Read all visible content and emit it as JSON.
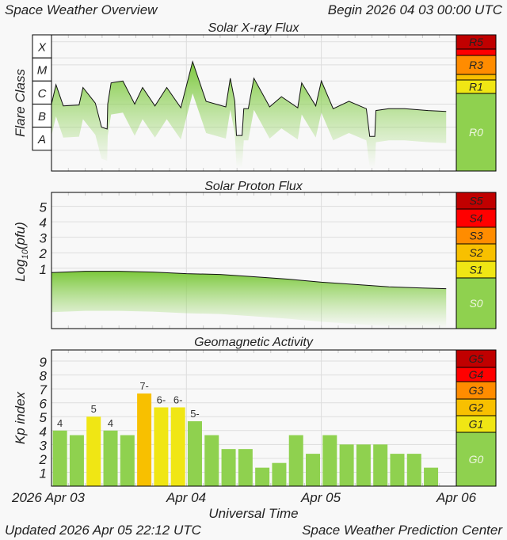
{
  "header": {
    "title": "Space Weather Overview",
    "begin": "Begin 2026 04 03 00:00 UTC"
  },
  "footer": {
    "updated": "Updated 2026 Apr 05 22:12 UTC",
    "source": "Space Weather Prediction Center"
  },
  "x_axis": {
    "label": "Universal Time",
    "ticks": [
      "2026 Apr 03",
      "Apr 04",
      "Apr 05",
      "Apr 06"
    ]
  },
  "chart_data": [
    {
      "type": "area",
      "title": "Solar X-ray Flux",
      "ylabel": "Flare Class",
      "y_categories": [
        "X",
        "M",
        "C",
        "B",
        "A"
      ],
      "y_scale": "log10 W/m2",
      "ylim": [
        -8.9,
        -3.0
      ],
      "scale_bar": [
        {
          "label": "R5",
          "color": "#c00000"
        },
        {
          "label": "",
          "color": "#ff0000"
        },
        {
          "label": "R3",
          "color": "#ff8c00"
        },
        {
          "label": "",
          "color": "#f8c000"
        },
        {
          "label": "R1",
          "color": "#f0e614"
        },
        {
          "label": "R0",
          "color": "#8fd14f"
        }
      ],
      "x": [
        "2026-04-03T00:00",
        "2026-04-03T00:48",
        "2026-04-03T02:06",
        "2026-04-03T04:54",
        "2026-04-03T05:36",
        "2026-04-03T07:48",
        "2026-04-03T08:54",
        "2026-04-03T09:54",
        "2026-04-03T10:00",
        "2026-04-03T10:36",
        "2026-04-03T12:42",
        "2026-04-03T14:48",
        "2026-04-03T16:12",
        "2026-04-03T18:24",
        "2026-04-03T20:30",
        "2026-04-03T23:00",
        "2026-04-04T01:06",
        "2026-04-04T03:30",
        "2026-04-04T07:00",
        "2026-04-04T07:48",
        "2026-04-04T08:36",
        "2026-04-04T08:54",
        "2026-04-04T09:54",
        "2026-04-04T10:12",
        "2026-04-04T11:00",
        "2026-04-04T12:00",
        "2026-04-04T14:48",
        "2026-04-04T16:54",
        "2026-04-04T19:48",
        "2026-04-04T20:30",
        "2026-04-04T23:00",
        "2026-04-05T00:00",
        "2026-04-05T02:06",
        "2026-04-05T04:54",
        "2026-04-05T08:00",
        "2026-04-05T08:36",
        "2026-04-05T09:30",
        "2026-04-05T09:42",
        "2026-04-05T12:00",
        "2026-04-05T14:48",
        "2026-04-05T19:00",
        "2026-04-05T22:12"
      ],
      "y": [
        -6.0,
        -5.16,
        -6.08,
        -6.04,
        -5.28,
        -5.96,
        -7.0,
        -7.08,
        -6.0,
        -5.08,
        -5.0,
        -6.0,
        -5.28,
        -6.08,
        -5.28,
        -6.16,
        -4.16,
        -5.88,
        -6.12,
        -4.88,
        -5.88,
        -7.36,
        -7.36,
        -6.2,
        -6.2,
        -4.88,
        -6.12,
        -5.68,
        -6.16,
        -5.08,
        -6.08,
        -5.0,
        -6.2,
        -5.88,
        -6.2,
        -7.4,
        -7.4,
        -6.28,
        -6.2,
        -6.2,
        -6.28,
        -6.32
      ]
    },
    {
      "type": "area",
      "title": "Solar Proton Flux",
      "ylabel": "Log10(pfu)",
      "yticks": [
        1,
        2,
        3,
        4,
        5
      ],
      "ylim": [
        -2.9,
        5.9
      ],
      "scale_bar": [
        {
          "label": "S5",
          "color": "#c00000"
        },
        {
          "label": "S4",
          "color": "#ff0000"
        },
        {
          "label": "S3",
          "color": "#ff8c00"
        },
        {
          "label": "S2",
          "color": "#f8c000"
        },
        {
          "label": "S1",
          "color": "#f0e614"
        },
        {
          "label": "S0",
          "color": "#8fd14f"
        }
      ],
      "x": [
        "2026-04-03T00:00",
        "2026-04-03T06:00",
        "2026-04-03T12:00",
        "2026-04-03T18:00",
        "2026-04-04T00:00",
        "2026-04-04T06:00",
        "2026-04-04T12:00",
        "2026-04-04T18:00",
        "2026-04-05T00:00",
        "2026-04-05T06:00",
        "2026-04-05T12:00",
        "2026-04-05T18:00",
        "2026-04-05T22:12"
      ],
      "y": [
        0.72,
        0.8,
        0.8,
        0.75,
        0.65,
        0.6,
        0.45,
        0.3,
        0.1,
        -0.05,
        -0.2,
        -0.28,
        -0.32
      ]
    },
    {
      "type": "bar",
      "title": "Geomagnetic Activity",
      "ylabel": "Kp index",
      "yticks": [
        1,
        2,
        3,
        4,
        5,
        6,
        7,
        8,
        9
      ],
      "ylim": [
        0,
        9.8
      ],
      "grid": true,
      "scale_bar": [
        {
          "label": "G5",
          "color": "#c00000"
        },
        {
          "label": "G4",
          "color": "#ff0000"
        },
        {
          "label": "G3",
          "color": "#ff8c00"
        },
        {
          "label": "G2",
          "color": "#f8c000"
        },
        {
          "label": "G1",
          "color": "#f0e614"
        },
        {
          "label": "G0",
          "color": "#8fd14f"
        }
      ],
      "x": [
        "2026-04-03T00:00",
        "2026-04-03T03:00",
        "2026-04-03T06:00",
        "2026-04-03T09:00",
        "2026-04-03T12:00",
        "2026-04-03T15:00",
        "2026-04-03T18:00",
        "2026-04-03T21:00",
        "2026-04-04T00:00",
        "2026-04-04T03:00",
        "2026-04-04T06:00",
        "2026-04-04T09:00",
        "2026-04-04T12:00",
        "2026-04-04T15:00",
        "2026-04-04T18:00",
        "2026-04-04T21:00",
        "2026-04-05T00:00",
        "2026-04-05T03:00",
        "2026-04-05T06:00",
        "2026-04-05T09:00",
        "2026-04-05T12:00",
        "2026-04-05T15:00",
        "2026-04-05T18:00"
      ],
      "values": [
        4,
        3.67,
        5,
        4,
        3.67,
        6.67,
        5.67,
        5.67,
        4.67,
        3.67,
        2.67,
        2.67,
        1.33,
        1.67,
        3.67,
        2.33,
        3.67,
        3,
        3,
        3,
        2.33,
        2.33,
        1.33
      ],
      "labels": [
        "4",
        "",
        "5",
        "4",
        "",
        "7-",
        "6-",
        "6-",
        "5-",
        "",
        "",
        "",
        "",
        "",
        "",
        "",
        "",
        "",
        "",
        "",
        "",
        "",
        ""
      ],
      "colors": [
        "#8fd14f",
        "#8fd14f",
        "#f0e614",
        "#8fd14f",
        "#8fd14f",
        "#f8c000",
        "#f0e614",
        "#f0e614",
        "#8fd14f",
        "#8fd14f",
        "#8fd14f",
        "#8fd14f",
        "#8fd14f",
        "#8fd14f",
        "#8fd14f",
        "#8fd14f",
        "#8fd14f",
        "#8fd14f",
        "#8fd14f",
        "#8fd14f",
        "#8fd14f",
        "#8fd14f",
        "#8fd14f"
      ]
    }
  ]
}
